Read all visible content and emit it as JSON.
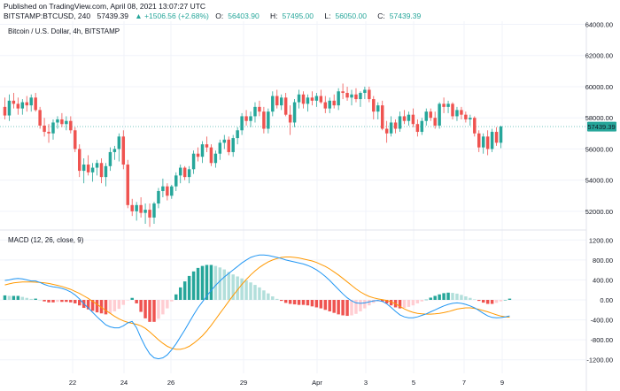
{
  "header": {
    "published": "Published on TradingView.com, April 08, 2021 13:07:27 UTC",
    "symbol_interval": "BITSTAMP:BTCUSD, 240",
    "last": "57439.39",
    "change": "▲ +1506.56 (+2.68%)",
    "o_label": "O:",
    "o_value": "56403.90",
    "h_label": "H:",
    "h_value": "57495.00",
    "l_label": "L:",
    "l_value": "56050.00",
    "c_label": "C:",
    "c_value": "57439.39"
  },
  "colors": {
    "up": "#26a69a",
    "down": "#ef5350",
    "hist_up_strong": "#26a69a",
    "hist_up_weak": "#b2dfdb",
    "hist_down_strong": "#ef5350",
    "hist_down_weak": "#ffcdd2",
    "macd_line": "#2196f3",
    "signal_line": "#ff9800",
    "price_tag": "#26a69a"
  },
  "chart_data": [
    {
      "type": "candlestick",
      "title": "Bitcoin / U.S. Dollar, 4h, BITSTAMP",
      "y_ticks": [
        "64000.00",
        "62000.00",
        "60000.00",
        "58000.00",
        "56000.00",
        "54000.00",
        "52000.00"
      ],
      "ylim": [
        50800,
        64200
      ],
      "x_ticks": [
        "22",
        "24",
        "26",
        "29",
        "Apr",
        "3",
        "5",
        "7",
        "9"
      ],
      "last_price_label": "57439.39",
      "last_price": 57439.39,
      "candles": [
        [
          58700,
          59300,
          57900,
          58150
        ],
        [
          58150,
          59500,
          57800,
          59100
        ],
        [
          59100,
          59600,
          58600,
          58900
        ],
        [
          58900,
          59300,
          58200,
          58600
        ],
        [
          58600,
          59200,
          58200,
          59000
        ],
        [
          59000,
          59400,
          58400,
          58800
        ],
        [
          58800,
          59500,
          58400,
          59300
        ],
        [
          59300,
          59600,
          58400,
          58500
        ],
        [
          58500,
          58700,
          57300,
          57500
        ],
        [
          57500,
          58000,
          56800,
          57100
        ],
        [
          57100,
          57600,
          56400,
          57000
        ],
        [
          57000,
          57900,
          56600,
          57700
        ],
        [
          57700,
          58100,
          57300,
          57900
        ],
        [
          57900,
          58300,
          57400,
          57600
        ],
        [
          57600,
          58100,
          57200,
          57800
        ],
        [
          57800,
          58100,
          57000,
          57200
        ],
        [
          57200,
          57400,
          55800,
          56000
        ],
        [
          56000,
          56300,
          54200,
          54600
        ],
        [
          54600,
          55400,
          53800,
          55000
        ],
        [
          55000,
          55600,
          54300,
          54500
        ],
        [
          54500,
          55100,
          53900,
          54800
        ],
        [
          54800,
          55300,
          54300,
          55100
        ],
        [
          55100,
          55400,
          53800,
          54200
        ],
        [
          54200,
          55100,
          53600,
          54900
        ],
        [
          54900,
          56100,
          54600,
          55800
        ],
        [
          55800,
          56200,
          55300,
          56000
        ],
        [
          56000,
          57000,
          55200,
          56800
        ],
        [
          56800,
          57200,
          54700,
          55000
        ],
        [
          55000,
          55300,
          52200,
          52400
        ],
        [
          52400,
          52800,
          51700,
          52000
        ],
        [
          52000,
          52600,
          51400,
          52400
        ],
        [
          52400,
          52900,
          51600,
          51900
        ],
        [
          51900,
          52500,
          51200,
          52100
        ],
        [
          52100,
          52500,
          51000,
          51600
        ],
        [
          51600,
          52600,
          51200,
          52500
        ],
        [
          52500,
          53500,
          52200,
          53300
        ],
        [
          53300,
          54100,
          52900,
          53600
        ],
        [
          53600,
          53800,
          52700,
          53000
        ],
        [
          53000,
          53700,
          52800,
          53600
        ],
        [
          53600,
          54500,
          53300,
          54300
        ],
        [
          54300,
          55000,
          53800,
          54800
        ],
        [
          54800,
          54900,
          54000,
          54200
        ],
        [
          54200,
          54900,
          53800,
          54700
        ],
        [
          54700,
          55900,
          54400,
          55700
        ],
        [
          55700,
          56100,
          55200,
          55500
        ],
        [
          55500,
          56500,
          55100,
          56300
        ],
        [
          56300,
          56800,
          55800,
          56100
        ],
        [
          56100,
          56300,
          54900,
          55100
        ],
        [
          55100,
          55900,
          54800,
          55700
        ],
        [
          55700,
          56600,
          55300,
          56400
        ],
        [
          56400,
          56900,
          56000,
          56600
        ],
        [
          56600,
          56800,
          55600,
          55800
        ],
        [
          55800,
          56900,
          55500,
          56700
        ],
        [
          56700,
          57400,
          56300,
          57200
        ],
        [
          57200,
          58300,
          56900,
          58100
        ],
        [
          58100,
          58500,
          57500,
          57800
        ],
        [
          57800,
          58400,
          57400,
          58100
        ],
        [
          58100,
          59000,
          57700,
          58700
        ],
        [
          58700,
          59100,
          58100,
          58400
        ],
        [
          58400,
          58700,
          57000,
          57300
        ],
        [
          57300,
          58600,
          57000,
          58400
        ],
        [
          58400,
          59700,
          58100,
          59400
        ],
        [
          59400,
          59800,
          58600,
          58800
        ],
        [
          58800,
          59500,
          58500,
          59300
        ],
        [
          59300,
          59600,
          58100,
          58200
        ],
        [
          58200,
          58800,
          56900,
          57700
        ],
        [
          57700,
          59200,
          57400,
          59000
        ],
        [
          59000,
          59800,
          58600,
          59500
        ],
        [
          59500,
          59700,
          58600,
          58900
        ],
        [
          58900,
          59500,
          58400,
          59300
        ],
        [
          59300,
          59700,
          58800,
          59100
        ],
        [
          59100,
          59600,
          58700,
          59400
        ],
        [
          59400,
          59800,
          58900,
          59000
        ],
        [
          59000,
          59400,
          58300,
          58600
        ],
        [
          58600,
          59300,
          58300,
          59100
        ],
        [
          59100,
          59500,
          58600,
          58800
        ],
        [
          58800,
          59900,
          58500,
          59700
        ],
        [
          59700,
          60200,
          59200,
          59600
        ],
        [
          59600,
          60000,
          59100,
          59300
        ],
        [
          59300,
          59800,
          58800,
          59500
        ],
        [
          59500,
          59900,
          59000,
          59200
        ],
        [
          59200,
          59700,
          58700,
          59600
        ],
        [
          59600,
          60000,
          59200,
          59800
        ],
        [
          59800,
          60000,
          59000,
          59200
        ],
        [
          59200,
          59400,
          57900,
          58400
        ],
        [
          58400,
          59000,
          57900,
          58800
        ],
        [
          58800,
          59100,
          57200,
          57300
        ],
        [
          57300,
          57800,
          56400,
          57000
        ],
        [
          57000,
          58100,
          56800,
          57700
        ],
        [
          57700,
          57900,
          57000,
          57300
        ],
        [
          57300,
          58400,
          57100,
          58100
        ],
        [
          58100,
          58500,
          57600,
          57800
        ],
        [
          57800,
          58400,
          57500,
          58200
        ],
        [
          58200,
          58600,
          57400,
          57600
        ],
        [
          57600,
          57900,
          56800,
          57100
        ],
        [
          57100,
          58000,
          56900,
          57800
        ],
        [
          57800,
          58600,
          57500,
          58400
        ],
        [
          58400,
          58600,
          57800,
          58000
        ],
        [
          58000,
          58400,
          57300,
          57500
        ],
        [
          57500,
          59000,
          57300,
          58900
        ],
        [
          58900,
          59300,
          58300,
          58700
        ],
        [
          58700,
          59100,
          58300,
          58900
        ],
        [
          58900,
          59000,
          57900,
          58100
        ],
        [
          58100,
          58700,
          57800,
          58500
        ],
        [
          58500,
          58700,
          57900,
          58200
        ],
        [
          58200,
          58400,
          57700,
          57900
        ],
        [
          57900,
          58200,
          57500,
          58000
        ],
        [
          58000,
          58100,
          56800,
          57000
        ],
        [
          57000,
          57200,
          55800,
          56100
        ],
        [
          56100,
          57000,
          55700,
          56800
        ],
        [
          56800,
          57200,
          55600,
          56000
        ],
        [
          56000,
          57300,
          55800,
          57100
        ],
        [
          57100,
          57400,
          56200,
          56400
        ],
        [
          56400,
          57495,
          56050,
          57439.39
        ]
      ]
    },
    {
      "type": "macd",
      "title": "MACD (12, 26, close, 9)",
      "y_ticks": [
        "1200.00",
        "800.00",
        "400.00",
        "0.00",
        "-400.00",
        "-800.00",
        "-1200.00"
      ],
      "ylim": [
        -1400,
        1400
      ],
      "series": [
        {
          "macd": [
            390,
            400,
            420,
            430,
            420,
            400,
            380,
            380,
            350,
            310,
            280,
            260,
            250,
            230,
            200,
            160,
            100,
            20,
            -80,
            -160,
            -250,
            -340,
            -420,
            -500,
            -540,
            -560,
            -560,
            -520,
            -460,
            -430,
            -560,
            -760,
            -940,
            -1080,
            -1160,
            -1180,
            -1160,
            -1100,
            -1000,
            -880,
            -740,
            -600,
            -450,
            -300,
            -160,
            -40,
            80,
            190,
            290,
            380,
            460,
            530,
            600,
            670,
            740,
            800,
            850,
            880,
            900,
            900,
            890,
            870,
            850,
            830,
            800,
            780,
            760,
            740,
            720,
            690,
            650,
            600,
            540,
            470,
            390,
            300,
            210,
            120,
            40,
            -20,
            -60,
            -70,
            -60,
            -40,
            -20,
            -10,
            -30,
            -80,
            -150,
            -230,
            -300,
            -340,
            -360,
            -360,
            -340,
            -310,
            -280,
            -240,
            -200,
            -160,
            -120,
            -90,
            -70,
            -60,
            -70,
            -90,
            -120,
            -160,
            -210,
            -270,
            -320,
            -350,
            -360,
            -355,
            -340,
            -320
          ]
        },
        {
          "signal": [
            300,
            320,
            340,
            350,
            360,
            360,
            360,
            355,
            350,
            340,
            330,
            310,
            290,
            270,
            240,
            210,
            170,
            130,
            80,
            30,
            -30,
            -90,
            -150,
            -210,
            -270,
            -330,
            -380,
            -420,
            -450,
            -470,
            -490,
            -520,
            -570,
            -640,
            -720,
            -800,
            -870,
            -930,
            -970,
            -990,
            -990,
            -970,
            -930,
            -870,
            -800,
            -720,
            -620,
            -510,
            -390,
            -270,
            -150,
            -30,
            90,
            200,
            310,
            410,
            500,
            580,
            650,
            710,
            760,
            800,
            830,
            850,
            860,
            860,
            850,
            840,
            820,
            800,
            780,
            750,
            710,
            670,
            620,
            560,
            500,
            430,
            360,
            290,
            220,
            160,
            110,
            70,
            40,
            20,
            5,
            -10,
            -40,
            -80,
            -130,
            -180,
            -220,
            -250,
            -270,
            -280,
            -285,
            -285,
            -280,
            -270,
            -255,
            -235,
            -210,
            -185,
            -170,
            -160,
            -160,
            -170,
            -190,
            -215,
            -240,
            -270,
            -300,
            -325,
            -340,
            -345
          ]
        }
      ]
    }
  ]
}
